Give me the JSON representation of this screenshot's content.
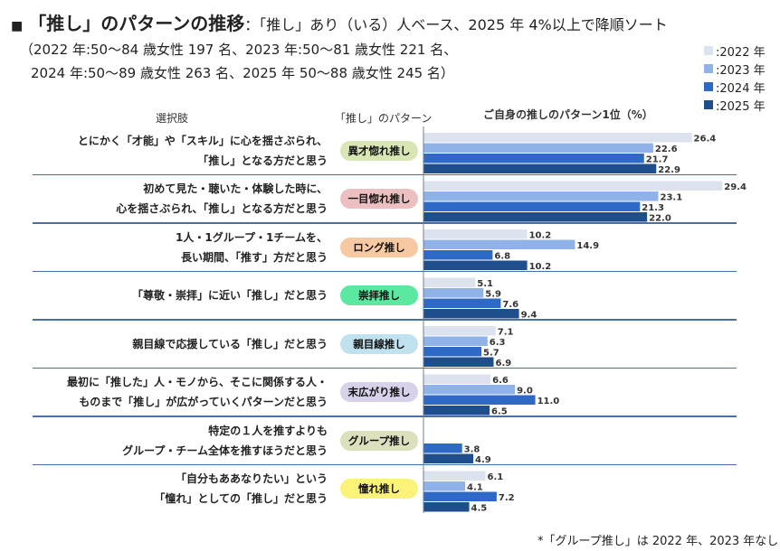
{
  "header": {
    "bullet": "■",
    "title": "「推し」のパターンの推移",
    "subtitle": "：「推し」あり（いる）人ベース、2025 年 4%以上で降順ソート",
    "note_line1": "（2022 年:50～84 歳女性 197 名、2023 年:50～81 歳女性 221 名、",
    "note_line2": "2024 年:50～89 歳女性 263 名、2025 年 50～88 歳女性 245 名）"
  },
  "legend": [
    {
      "label": ":2022 年",
      "color": "#dde3ee"
    },
    {
      "label": ":2023 年",
      "color": "#8fb3e8"
    },
    {
      "label": ":2024 年",
      "color": "#2f69c6"
    },
    {
      "label": ":2025 年",
      "color": "#1f4e8c"
    }
  ],
  "columns": {
    "choice": "選択肢",
    "pattern": "「推し」のパターン",
    "chart": "ご自身の推しのパターン1位（%）"
  },
  "footnote": "*「グループ推し」は 2022 年、2023 年なし",
  "chart_data": {
    "type": "bar",
    "orientation": "horizontal",
    "title": "ご自身の推しのパターン1位（%）",
    "unit": "%",
    "xlim": [
      0,
      32
    ],
    "series_names": [
      "2022",
      "2023",
      "2024",
      "2025"
    ],
    "categories": [
      {
        "lines": [
          "とにかく「才能」や「スキル」に心を揺さぶられ、",
          "「推し」となる方だと思う"
        ],
        "badge": "異才惚れ推し",
        "badge_color": "#d8e5b5",
        "values": [
          26.4,
          22.6,
          21.7,
          22.9
        ]
      },
      {
        "lines": [
          "初めて見た・聴いた・体験した時に、",
          "心を揺さぶられ、「推し」となる方だと思う"
        ],
        "badge": "一目惚れ推し",
        "badge_color": "#ecc0c0",
        "values": [
          29.4,
          23.1,
          21.3,
          22.0
        ]
      },
      {
        "lines": [
          "1人・1グループ・1チームを、",
          "長い期間、「推す」方だと思う"
        ],
        "badge": "ロング推し",
        "badge_color": "#f7c9a2",
        "values": [
          10.2,
          14.9,
          6.8,
          10.2
        ]
      },
      {
        "lines": [
          "「尊敬・崇拝」に近い「推し」だと思う"
        ],
        "badge": "崇拝推し",
        "badge_color": "#5be8a0",
        "values": [
          5.1,
          5.9,
          7.6,
          9.4
        ]
      },
      {
        "lines": [
          "親目線で応援している「推し」だと思う"
        ],
        "badge": "親目線推し",
        "badge_color": "#bfe2ee",
        "values": [
          7.1,
          6.3,
          5.7,
          6.9
        ]
      },
      {
        "lines": [
          "最初に「推した」人・モノから、そこに関係する人・",
          "ものまで「推し」が広がっていくパターンだと思う"
        ],
        "badge": "末広がり推し",
        "badge_color": "#d7d2ea",
        "values": [
          6.6,
          9.0,
          11.0,
          6.5
        ]
      },
      {
        "lines": [
          "特定の１人を推すよりも",
          "グループ・チーム全体を推すほうだと思う"
        ],
        "badge": "グループ推し",
        "badge_color": "#dde0bd",
        "values": [
          null,
          null,
          3.8,
          4.9
        ]
      },
      {
        "lines": [
          "「自分もああなりたい」という",
          "「憧れ」としての「推し」だと思う"
        ],
        "badge": "憧れ推し",
        "badge_color": "#fbf27a",
        "values": [
          6.1,
          4.1,
          7.2,
          4.5
        ]
      }
    ]
  }
}
